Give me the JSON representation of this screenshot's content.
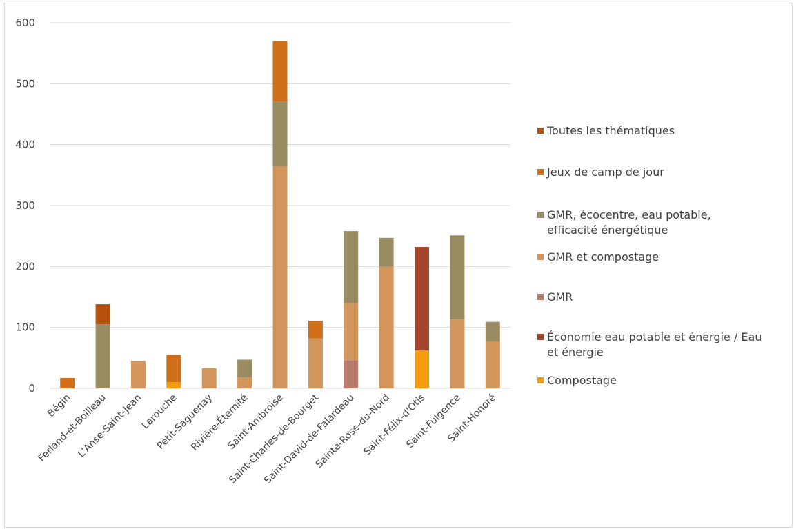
{
  "chart_data": {
    "type": "bar",
    "stacked": true,
    "title": "",
    "xlabel": "",
    "ylabel": "",
    "ylim": [
      0,
      600
    ],
    "yticks": [
      0,
      100,
      200,
      300,
      400,
      500,
      600
    ],
    "grid": true,
    "legend_position": "right",
    "categories": [
      "Bégin",
      "Ferland-et-Boilleau",
      "L'Anse-Saint-Jean",
      "Larouche",
      "Petit-Saguenay",
      "Rivière-Éternité",
      "Saint-Ambroise",
      "Saint-Charles-de-Bourget",
      "Saint-David-de-Falardeau",
      "Sainte-Rose-du-Nord",
      "Saint-Félix-d'Otis",
      "Saint-Fulgence",
      "Saint-Honoré"
    ],
    "series": [
      {
        "name": "Compostage",
        "color": "#f59b10",
        "values": [
          0,
          0,
          0,
          10,
          0,
          0,
          0,
          0,
          0,
          0,
          62,
          0,
          0
        ]
      },
      {
        "name": "Économie eau potable et énergie / Eau et énergie",
        "color": "#a5452c",
        "values": [
          0,
          0,
          0,
          0,
          0,
          0,
          0,
          0,
          0,
          0,
          170,
          0,
          0
        ]
      },
      {
        "name": "GMR",
        "color": "#b97c6c",
        "values": [
          0,
          0,
          0,
          0,
          0,
          0,
          0,
          0,
          46,
          0,
          0,
          0,
          0
        ]
      },
      {
        "name": "GMR et compostage",
        "color": "#d2955c",
        "values": [
          0,
          0,
          45,
          0,
          33,
          18,
          365,
          82,
          94,
          200,
          0,
          113,
          76
        ]
      },
      {
        "name": "GMR, écocentre, eau potable, efficacité énergétique",
        "color": "#9a8c62",
        "values": [
          0,
          105,
          0,
          0,
          0,
          29,
          105,
          0,
          118,
          47,
          0,
          138,
          33
        ]
      },
      {
        "name": "Jeux de camp de jour",
        "color": "#cf6f1a",
        "values": [
          17,
          0,
          0,
          45,
          0,
          0,
          100,
          29,
          0,
          0,
          0,
          0,
          0
        ]
      },
      {
        "name": "Toutes les thématiques",
        "color": "#b5500d",
        "values": [
          0,
          33,
          0,
          0,
          0,
          0,
          0,
          0,
          0,
          0,
          0,
          0,
          0
        ]
      }
    ],
    "legend_order": [
      {
        "lines": [
          "Toutes les thématiques"
        ],
        "color": "#b5500d"
      },
      {
        "lines": [
          "Jeux de camp de jour"
        ],
        "color": "#cf6f1a"
      },
      {
        "lines": [
          "GMR, écocentre, eau potable,",
          "efficacité énergétique"
        ],
        "color": "#9a8c62"
      },
      {
        "lines": [
          "GMR et compostage"
        ],
        "color": "#d2955c"
      },
      {
        "lines": [
          "GMR"
        ],
        "color": "#b97c6c"
      },
      {
        "lines": [
          "Économie eau potable et énergie / Eau",
          "et énergie"
        ],
        "color": "#a5452c"
      },
      {
        "lines": [
          "Compostage"
        ],
        "color": "#f59b10"
      }
    ]
  }
}
